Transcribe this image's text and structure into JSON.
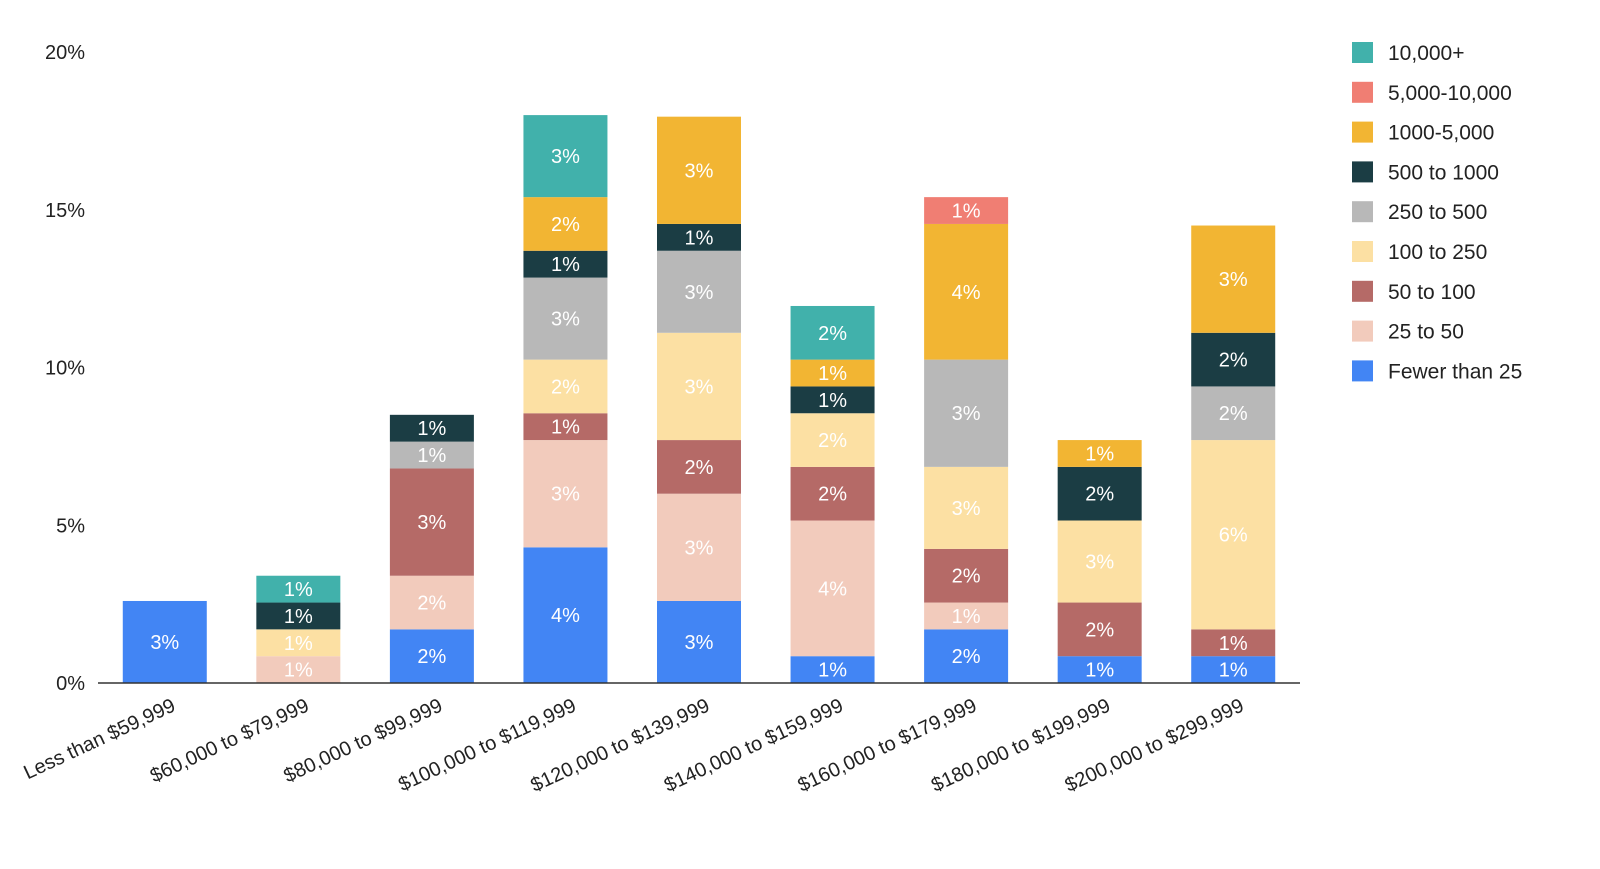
{
  "chart_data": {
    "type": "bar",
    "stacked": true,
    "categories": [
      "Less than $59,999",
      "$60,000 to $79,999",
      "$80,000 to $99,999",
      "$100,000 to $119,999",
      "$120,000 to $139,999",
      "$140,000 to $159,999",
      "$160,000 to $179,999",
      "$180,000 to $199,999",
      "$200,000 to $299,999"
    ],
    "series": [
      {
        "name": "Fewer than 25",
        "color": "#4285f4",
        "values": [
          2.6,
          0,
          1.7,
          4.3,
          2.6,
          0.85,
          1.7,
          0.85,
          0.85
        ],
        "labels": [
          "3%",
          "",
          "2%",
          "4%",
          "3%",
          "1%",
          "2%",
          "1%",
          "1%"
        ]
      },
      {
        "name": "25 to 50",
        "color": "#f2cbbc",
        "values": [
          0,
          0.85,
          1.7,
          3.4,
          3.4,
          4.3,
          0.85,
          0,
          0
        ],
        "labels": [
          "",
          "1%",
          "2%",
          "3%",
          "3%",
          "4%",
          "1%",
          "",
          ""
        ]
      },
      {
        "name": "50 to 100",
        "color": "#b56a67",
        "values": [
          0,
          0,
          3.4,
          0.85,
          1.7,
          1.7,
          1.7,
          1.7,
          0.85
        ],
        "labels": [
          "",
          "",
          "3%",
          "1%",
          "2%",
          "2%",
          "2%",
          "2%",
          "1%"
        ]
      },
      {
        "name": "100 to 250",
        "color": "#fce0a3",
        "values": [
          0,
          0.85,
          0,
          1.7,
          3.4,
          1.7,
          2.6,
          2.6,
          6.0
        ],
        "labels": [
          "",
          "1%",
          "",
          "2%",
          "3%",
          "2%",
          "3%",
          "3%",
          "6%"
        ]
      },
      {
        "name": "250 to 500",
        "color": "#b8b8b8",
        "values": [
          0,
          0,
          0.85,
          2.6,
          2.6,
          0,
          3.4,
          0,
          1.7
        ],
        "labels": [
          "",
          "",
          "1%",
          "3%",
          "3%",
          "",
          "3%",
          "",
          "2%"
        ]
      },
      {
        "name": "500 to 1000",
        "color": "#1b3d44",
        "values": [
          0,
          0.85,
          0.85,
          0.85,
          0.85,
          0.85,
          0,
          1.7,
          1.7
        ],
        "labels": [
          "",
          "1%",
          "1%",
          "1%",
          "1%",
          "1%",
          "",
          "2%",
          "2%"
        ]
      },
      {
        "name": "1000-5,000",
        "color": "#f2b533",
        "values": [
          0,
          0,
          0,
          1.7,
          3.4,
          0.85,
          4.3,
          0.85,
          3.4
        ],
        "labels": [
          "",
          "",
          "",
          "2%",
          "3%",
          "1%",
          "4%",
          "1%",
          "3%"
        ]
      },
      {
        "name": "5,000-10,000",
        "color": "#f07e73",
        "values": [
          0,
          0,
          0,
          0,
          0,
          0,
          0.85,
          0,
          0
        ],
        "labels": [
          "",
          "",
          "",
          "",
          "",
          "",
          "1%",
          "",
          ""
        ]
      },
      {
        "name": "10,000+",
        "color": "#41b1ab",
        "values": [
          0,
          0.85,
          0,
          2.6,
          0,
          1.7,
          0,
          0,
          0
        ],
        "labels": [
          "",
          "1%",
          "",
          "3%",
          "",
          "2%",
          "",
          "",
          ""
        ]
      }
    ],
    "ylim": [
      0,
      20
    ],
    "yticks": [
      "0%",
      "5%",
      "10%",
      "15%",
      "20%"
    ],
    "ytick_values": [
      0,
      5,
      10,
      15,
      20
    ],
    "grid": false,
    "legend_position": "right",
    "title": "",
    "xlabel": "",
    "ylabel": ""
  }
}
